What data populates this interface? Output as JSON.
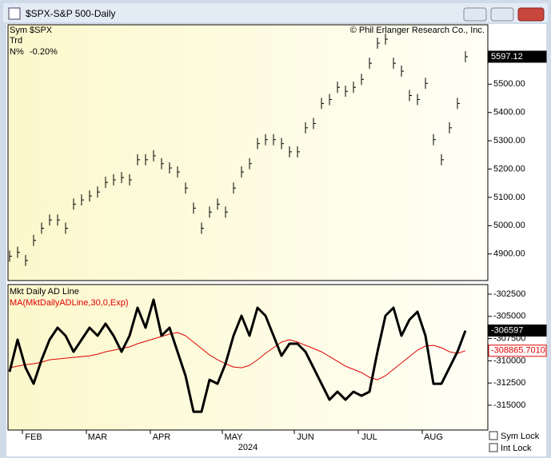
{
  "window": {
    "title": "$SPX-S&P 500-Daily",
    "checkboxes": [
      "Sym Lock",
      "Int Lock"
    ]
  },
  "chart_data": [
    {
      "type": "stock",
      "annotation": "© Phil Erlanger Research Co., Inc.",
      "info": [
        {
          "label": "Sym",
          "text": "$SPX"
        },
        {
          "label": "Trd"
        },
        {
          "label": "N%",
          "text": "-0.20%"
        }
      ],
      "color": "#000000",
      "last_label": "5597.12",
      "values": [
        4892,
        4906,
        4877,
        4948,
        4991,
        5020,
        5020,
        4991,
        5076,
        5091,
        5105,
        5119,
        5153,
        5162,
        5170,
        5162,
        5233,
        5233,
        5247,
        5219,
        5204,
        5190,
        5133,
        5062,
        4991,
        5048,
        5076,
        5048,
        5133,
        5190,
        5219,
        5290,
        5304,
        5304,
        5290,
        5261,
        5261,
        5346,
        5361,
        5432,
        5446,
        5489,
        5475,
        5489,
        5517,
        5574,
        5645,
        5659,
        5574,
        5546,
        5460,
        5446,
        5503,
        5304,
        5233,
        5346,
        5432,
        5597.12
      ],
      "ylim": [
        4806,
        5710
      ],
      "yticks": [
        {
          "value": 4900,
          "label": "4900.00"
        },
        {
          "value": 5000,
          "label": "5000.00"
        },
        {
          "value": 5100,
          "label": "5100.00"
        },
        {
          "value": 5200,
          "label": "5200.00"
        },
        {
          "value": 5300,
          "label": "5300.00"
        },
        {
          "value": 5400,
          "label": "5400.00"
        },
        {
          "value": 5500,
          "label": "5500.00"
        }
      ]
    },
    {
      "type": "line",
      "xlabel": "2024",
      "categories": [
        null,
        null,
        null,
        "FEB",
        null,
        null,
        null,
        null,
        null,
        null,
        null,
        "MAR",
        null,
        null,
        null,
        null,
        null,
        null,
        null,
        "APR",
        null,
        null,
        null,
        null,
        null,
        null,
        null,
        null,
        "MAY",
        null,
        null,
        null,
        null,
        null,
        null,
        null,
        null,
        "JUN",
        null,
        null,
        null,
        null,
        null,
        null,
        null,
        "JUL",
        null,
        null,
        null,
        null,
        null,
        null,
        null,
        "AUG",
        null,
        null,
        null,
        null
      ],
      "series": [
        {
          "name": "Mkt Daily AD Line",
          "color": "#000000",
          "last_label": "-306597",
          "values": [
            -311230,
            -307630,
            -310780,
            -312580,
            -309880,
            -307630,
            -306280,
            -307180,
            -308980,
            -307630,
            -306280,
            -307180,
            -305830,
            -307180,
            -308980,
            -307180,
            -304030,
            -306280,
            -303130,
            -307180,
            -306280,
            -308980,
            -311680,
            -315730,
            -315730,
            -312130,
            -312580,
            -310330,
            -307180,
            -304930,
            -307180,
            -304030,
            -304930,
            -307180,
            -309430,
            -308080,
            -308080,
            -308980,
            -310780,
            -312580,
            -314380,
            -313480,
            -314380,
            -313480,
            -313930,
            -313480,
            -308980,
            -304930,
            -304030,
            -307180,
            -305380,
            -304480,
            -307180,
            -312580,
            -312580,
            -310780,
            -308980,
            -306597
          ]
        },
        {
          "name": "MA(MktDailyADLine,30,0,Exp)",
          "color": "#e00000",
          "last_label": "-308865.7010",
          "values": [
            -310780,
            -310600,
            -310420,
            -310330,
            -310150,
            -309880,
            -309790,
            -309700,
            -309610,
            -309520,
            -309430,
            -309250,
            -308980,
            -308800,
            -308620,
            -308440,
            -308080,
            -307810,
            -307540,
            -307270,
            -307000,
            -306820,
            -307180,
            -307900,
            -308620,
            -309340,
            -309880,
            -310330,
            -310690,
            -310780,
            -310510,
            -309880,
            -309160,
            -308530,
            -307900,
            -307630,
            -307900,
            -308260,
            -308620,
            -308980,
            -309520,
            -310060,
            -310600,
            -310960,
            -311320,
            -311860,
            -312130,
            -311680,
            -310960,
            -310240,
            -309520,
            -308800,
            -308350,
            -308260,
            -308530,
            -308980,
            -309160,
            -308865.701
          ]
        }
      ],
      "ylim": [
        -317790,
        -301420
      ],
      "yticks": [
        -302500,
        -305000,
        -307500,
        -310000,
        -312500,
        -315000
      ]
    }
  ]
}
